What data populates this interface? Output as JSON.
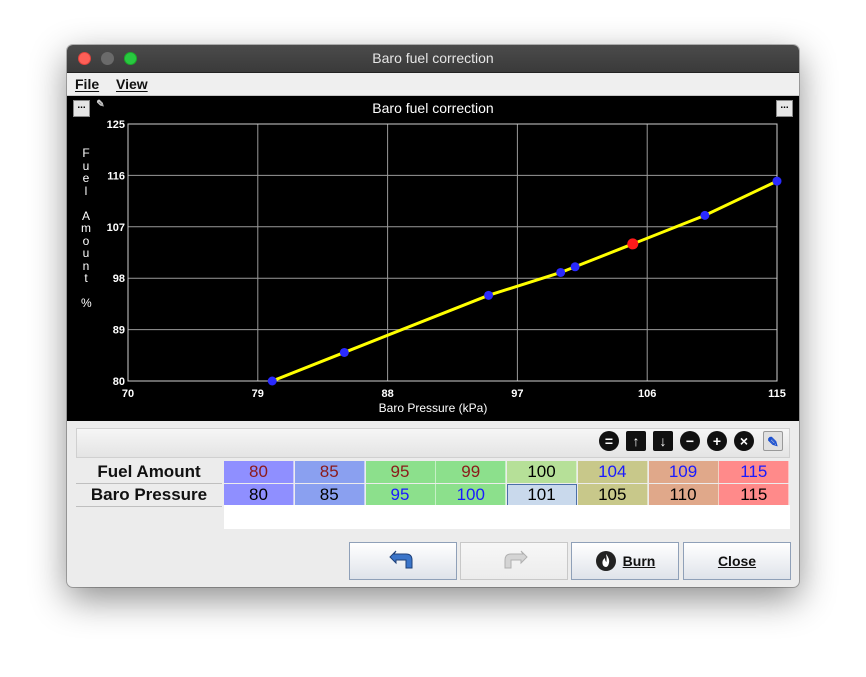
{
  "window": {
    "title": "Baro fuel correction"
  },
  "menu": {
    "file": "File",
    "view": "View"
  },
  "chart_data": {
    "type": "line",
    "title": "Baro fuel correction",
    "ylabel": "Fuel Amount %",
    "xlabel": "Baro Pressure (kPa)",
    "xlim": [
      70,
      115
    ],
    "ylim": [
      80,
      125
    ],
    "xticks": [
      "70",
      "79",
      "88",
      "97",
      "106",
      "115"
    ],
    "yticks": [
      "80",
      "89",
      "98",
      "107",
      "116",
      "125"
    ],
    "grid": true,
    "colors": {
      "line": "#ffff00",
      "point": "#2a2aff",
      "selected_point": "#ff1a1a"
    },
    "x": [
      80,
      85,
      95,
      100,
      101,
      105,
      110,
      115
    ],
    "y": [
      80,
      85,
      95,
      99,
      100,
      104,
      109,
      115
    ],
    "selected_index": 5
  },
  "chart": {
    "title": "Baro fuel correction",
    "ylabel_letters": "F\nu\ne\nl\n\nA\nm\no\nu\nn\nt\n\n%",
    "xlabel": "Baro Pressure (kPa)",
    "menu_left_icon": "...",
    "menu_right_icon": "..."
  },
  "table": {
    "rows": [
      {
        "label": "Fuel Amount",
        "cells": [
          {
            "value": "80",
            "bg": "#8f8fff",
            "color": "#8b1a1a"
          },
          {
            "value": "85",
            "bg": "#8aa0f0",
            "color": "#8b1a1a"
          },
          {
            "value": "95",
            "bg": "#8ce08c",
            "color": "#8b1a1a"
          },
          {
            "value": "99",
            "bg": "#8ce08c",
            "color": "#8b1a1a"
          },
          {
            "value": "100",
            "bg": "#b6e098",
            "color": "#000000"
          },
          {
            "value": "104",
            "bg": "#c8c88a",
            "color": "#1a1aff"
          },
          {
            "value": "109",
            "bg": "#e0a88a",
            "color": "#1a1aff"
          },
          {
            "value": "115",
            "bg": "#ff8a8a",
            "color": "#1a1aff"
          }
        ]
      },
      {
        "label": "Baro Pressure",
        "cells": [
          {
            "value": "80",
            "bg": "#8f8fff",
            "color": "#000000"
          },
          {
            "value": "85",
            "bg": "#8aa0f0",
            "color": "#000000"
          },
          {
            "value": "95",
            "bg": "#8ce08c",
            "color": "#1a1aff"
          },
          {
            "value": "100",
            "bg": "#8ce08c",
            "color": "#1a1aff"
          },
          {
            "value": "101",
            "bg": "#c9d9ec",
            "color": "#000000",
            "selected": true
          },
          {
            "value": "105",
            "bg": "#c8c88a",
            "color": "#000000"
          },
          {
            "value": "110",
            "bg": "#e0a88a",
            "color": "#000000"
          },
          {
            "value": "115",
            "bg": "#ff8a8a",
            "color": "#000000"
          }
        ]
      }
    ]
  },
  "toolbar_icons": [
    "equals-icon",
    "arrow-up-icon",
    "arrow-down-icon",
    "minus-icon",
    "plus-icon",
    "times-icon",
    "edit-pen-icon"
  ],
  "buttons": {
    "burn": "Burn",
    "close": "Close"
  }
}
